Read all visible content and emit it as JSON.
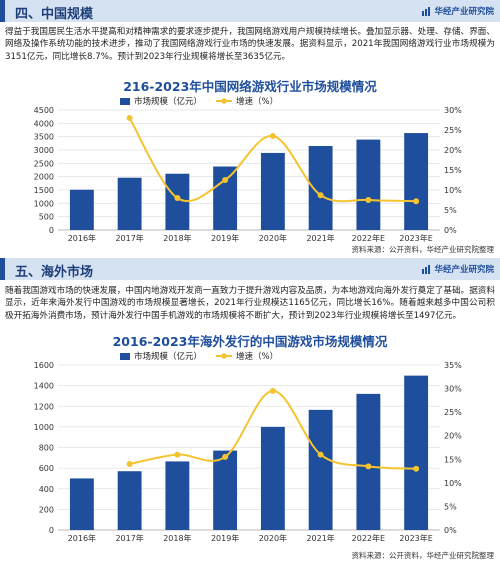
{
  "brand": "华经产业研究院",
  "colors": {
    "bar": "#1f4e9c",
    "line": "#f4c430",
    "accent": "#1f4e9c",
    "header_bg": "#d5e2f2"
  },
  "section4": {
    "title": "四、中国规模",
    "paragraph": "得益于我国居民生活水平提高和对精神需求的要求逐步提升，我国网络游戏用户规模持续增长。叠加显示器、处理、存储、界面、网络及操作系统功能的技术进步，推动了我国网络游戏行业市场的快速发展。据资料显示，2021年我国网络游戏行业市场规模为3151亿元，同比增长8.7%。预计到2023年行业规模将增长至3635亿元。",
    "source": "资料来源：公开资料，华经产业研究院整理"
  },
  "section5": {
    "title": "五、海外市场",
    "paragraph": "随着我国游戏市场的快速发展，中国内地游戏开发商一直致力于提升游戏内容及品质，为本地游戏向海外发行奠定了基础。据资料显示，近年来海外发行中国游戏的市场规模显著增长，2021年行业规模达1165亿元，同比增长16%。随着越来越多中国公司积极开拓海外消费市场，预计海外发行中国手机游戏的市场规模将不断扩大，预计到2023年行业规模将增长至1497亿元。",
    "source": "资料来源：公开资料，华经产业研究院整理"
  },
  "chart_data": [
    {
      "type": "bar",
      "title": "216-2023年中国网络游戏行业市场规模情况",
      "categories": [
        "2016年",
        "2017年",
        "2018年",
        "2019年",
        "2020年",
        "2021年",
        "2022年E",
        "2023年E"
      ],
      "series": [
        {
          "name": "市场规模（亿元）",
          "type": "bar",
          "axis": "left",
          "values": [
            1510,
            1960,
            2110,
            2380,
            2890,
            3151,
            3390,
            3635
          ]
        },
        {
          "name": "增速（%）",
          "type": "line",
          "axis": "right",
          "values": [
            null,
            28,
            8,
            12.5,
            23.5,
            8.7,
            7.5,
            7.2
          ]
        }
      ],
      "ylim": [
        0,
        4500
      ],
      "yticks": [
        "0",
        "500",
        "1000",
        "1500",
        "2000",
        "2500",
        "3000",
        "3500",
        "4000",
        "4500"
      ],
      "y2lim": [
        0,
        30
      ],
      "y2ticks": [
        "0%",
        "5%",
        "10%",
        "15%",
        "20%",
        "25%",
        "30%"
      ],
      "legend": "top"
    },
    {
      "type": "bar",
      "title": "2016-2023年海外发行的中国游戏市场规模情况",
      "categories": [
        "2016年",
        "2017年",
        "2018年",
        "2019年",
        "2020年",
        "2021年",
        "2022年E",
        "2023年E"
      ],
      "series": [
        {
          "name": "市场规模（亿元）",
          "type": "bar",
          "axis": "left",
          "values": [
            500,
            570,
            665,
            770,
            1000,
            1165,
            1320,
            1497
          ]
        },
        {
          "name": "增速（%）",
          "type": "line",
          "axis": "right",
          "values": [
            null,
            14,
            16,
            15.5,
            29.5,
            16,
            13.5,
            13
          ]
        }
      ],
      "ylim": [
        0,
        1600
      ],
      "yticks": [
        "0",
        "200",
        "400",
        "600",
        "800",
        "1000",
        "1200",
        "1400",
        "1600"
      ],
      "y2lim": [
        0,
        35
      ],
      "y2ticks": [
        "0%",
        "5%",
        "10%",
        "15%",
        "20%",
        "25%",
        "30%",
        "35%"
      ],
      "legend": "top"
    }
  ]
}
